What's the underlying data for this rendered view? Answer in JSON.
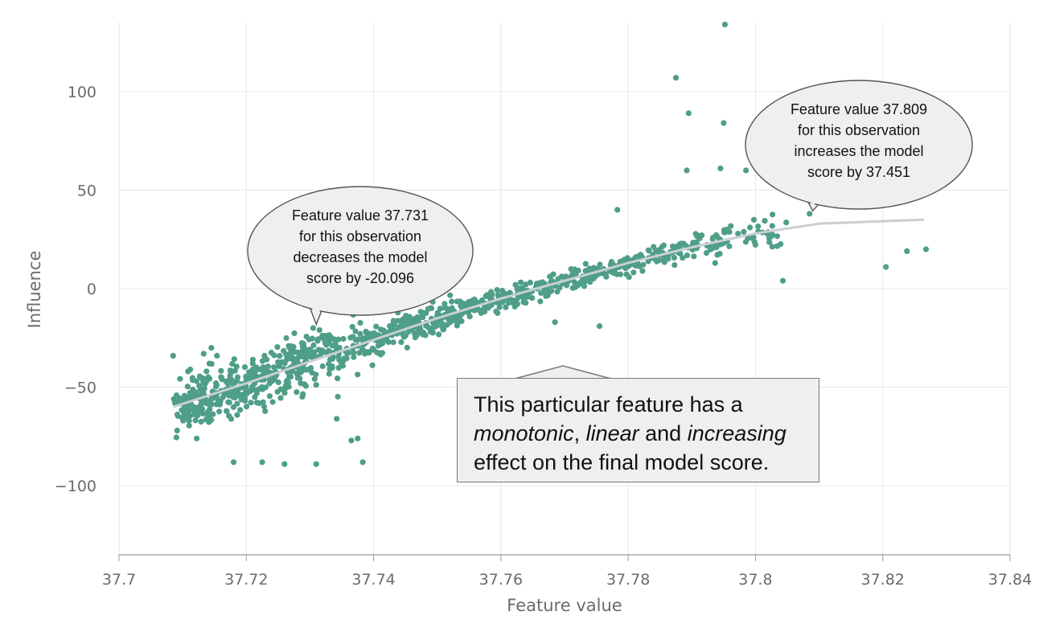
{
  "chart_data": {
    "type": "scatter",
    "title": "",
    "xlabel": "Feature value",
    "ylabel": "Influence",
    "xlim": [
      37.7,
      37.84
    ],
    "ylim": [
      -135,
      135
    ],
    "x_ticks": [
      "37.7",
      "37.72",
      "37.74",
      "37.76",
      "37.78",
      "37.8",
      "37.82",
      "37.84"
    ],
    "y_ticks": [
      "100",
      "50",
      "0",
      "−50",
      "−100"
    ],
    "grid": true,
    "legend": "none",
    "trend_line": {
      "x": [
        37.7085,
        37.72,
        37.73,
        37.74,
        37.75,
        37.76,
        37.77,
        37.78,
        37.79,
        37.8,
        37.81,
        37.8265
      ],
      "y": [
        -60,
        -48,
        -37,
        -26,
        -15,
        -5,
        4,
        13,
        21,
        28,
        33,
        35
      ]
    },
    "outliers": [
      {
        "x": 37.7085,
        "y": -34
      },
      {
        "x": 37.7086,
        "y": -56
      },
      {
        "x": 37.7088,
        "y": -58
      },
      {
        "x": 37.7105,
        "y": -55
      },
      {
        "x": 37.711,
        "y": -67
      },
      {
        "x": 37.7112,
        "y": -41
      },
      {
        "x": 37.7122,
        "y": -76
      },
      {
        "x": 37.7133,
        "y": -33
      },
      {
        "x": 37.7145,
        "y": -30
      },
      {
        "x": 37.718,
        "y": -88
      },
      {
        "x": 37.7225,
        "y": -88
      },
      {
        "x": 37.726,
        "y": -89
      },
      {
        "x": 37.731,
        "y": -89
      },
      {
        "x": 37.7383,
        "y": -88
      },
      {
        "x": 37.7375,
        "y": -76
      },
      {
        "x": 37.7365,
        "y": -77
      },
      {
        "x": 37.7342,
        "y": -66
      },
      {
        "x": 37.7305,
        "y": -20
      },
      {
        "x": 37.7875,
        "y": 107
      },
      {
        "x": 37.7952,
        "y": 134
      },
      {
        "x": 37.7895,
        "y": 89
      },
      {
        "x": 37.795,
        "y": 84
      },
      {
        "x": 37.7892,
        "y": 60
      },
      {
        "x": 37.7945,
        "y": 61
      },
      {
        "x": 37.7783,
        "y": 40
      },
      {
        "x": 37.8205,
        "y": 11
      },
      {
        "x": 37.8238,
        "y": 19
      },
      {
        "x": 37.8268,
        "y": 20
      },
      {
        "x": 37.8085,
        "y": 38
      },
      {
        "x": 37.8043,
        "y": 4
      },
      {
        "x": 37.7985,
        "y": 60
      },
      {
        "x": 37.7685,
        "y": -17
      },
      {
        "x": 37.7755,
        "y": -19
      }
    ],
    "cloud": {
      "count": 1040,
      "x_range": [
        37.709,
        37.806
      ],
      "trend": "monotonic linear increasing"
    },
    "callouts": [
      {
        "lines": [
          "Feature value 37.731",
          "for this observation",
          "decreases the model",
          "score by -20.096"
        ],
        "x": 37.731,
        "y": -20.096
      },
      {
        "lines": [
          "Feature value 37.809",
          "for this observation",
          "increases the model",
          "score by 37.451"
        ],
        "x": 37.809,
        "y": 37.451
      }
    ],
    "note": {
      "line1": "This particular feature has a",
      "line2_em1": "monotonic",
      "line2_sep1": ", ",
      "line2_em2": "linear",
      "line2_sep2": " and ",
      "line2_em3": "increasing",
      "line3": "effect on the final model score."
    },
    "colors": {
      "points": "#4f9e88",
      "trend": "#c9cfd4",
      "grid": "#e6e6e6",
      "callout_fill": "#eef0ee"
    }
  }
}
